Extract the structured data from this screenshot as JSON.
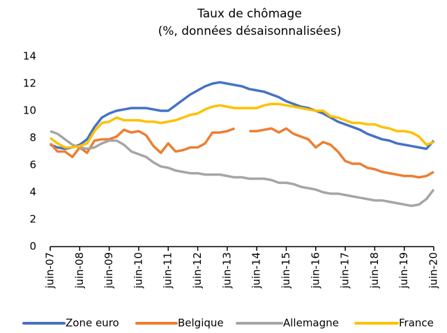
{
  "chart_data": {
    "type": "line",
    "title": [
      "Taux de chômage",
      "(%, données désaisonnalisées)"
    ],
    "categories": [
      "juin-07",
      null,
      null,
      null,
      "juin-08",
      null,
      null,
      null,
      "juin-09",
      null,
      null,
      null,
      "juin-10",
      null,
      null,
      null,
      "juin-11",
      null,
      null,
      null,
      "juin-12",
      null,
      null,
      null,
      "juin-13",
      null,
      null,
      null,
      "juin-14",
      null,
      null,
      null,
      "juin-15",
      null,
      null,
      null,
      "juin-16",
      null,
      null,
      null,
      "juin-17",
      null,
      null,
      null,
      "juin-18",
      null,
      null,
      null,
      "juin-19",
      null,
      null,
      null,
      "juin-20"
    ],
    "series": [
      {
        "name": "Zone euro",
        "color": "#4472c4",
        "values": [
          7.5,
          7.3,
          7.2,
          7.3,
          7.5,
          7.9,
          8.8,
          9.5,
          9.8,
          10.0,
          10.1,
          10.2,
          10.2,
          10.2,
          10.1,
          10.0,
          10.0,
          10.4,
          10.8,
          11.2,
          11.5,
          11.8,
          12.0,
          12.1,
          12.0,
          11.9,
          11.8,
          11.6,
          11.5,
          11.4,
          11.2,
          11.0,
          10.7,
          10.5,
          10.3,
          10.2,
          10.0,
          9.8,
          9.5,
          9.2,
          9.0,
          8.8,
          8.6,
          8.3,
          8.1,
          7.9,
          7.8,
          7.6,
          7.5,
          7.4,
          7.3,
          7.2,
          7.8
        ]
      },
      {
        "name": "Belgique",
        "color": "#ed7d31",
        "values": [
          7.6,
          7.0,
          7.0,
          6.6,
          7.3,
          6.9,
          7.8,
          7.9,
          7.9,
          8.1,
          8.6,
          8.4,
          8.5,
          8.2,
          7.4,
          6.9,
          7.6,
          7.0,
          7.1,
          7.3,
          7.3,
          7.6,
          8.4,
          8.4,
          8.5,
          8.7,
          null,
          8.5,
          8.5,
          8.6,
          8.7,
          8.4,
          8.7,
          8.3,
          8.1,
          7.9,
          7.3,
          7.7,
          7.5,
          7.0,
          6.3,
          6.1,
          6.1,
          5.8,
          5.7,
          5.5,
          5.4,
          5.3,
          5.2,
          5.2,
          5.1,
          5.2,
          5.5
        ]
      },
      {
        "name": "Allemagne",
        "color": "#a5a5a5",
        "values": [
          8.5,
          8.3,
          7.9,
          7.5,
          7.3,
          7.2,
          7.3,
          7.6,
          7.8,
          7.8,
          7.5,
          7.0,
          6.8,
          6.6,
          6.2,
          5.9,
          5.8,
          5.6,
          5.5,
          5.4,
          5.4,
          5.3,
          5.3,
          5.3,
          5.2,
          5.1,
          5.1,
          5.0,
          5.0,
          5.0,
          4.9,
          4.7,
          4.7,
          4.6,
          4.4,
          4.3,
          4.2,
          4.0,
          3.9,
          3.9,
          3.8,
          3.7,
          3.6,
          3.5,
          3.4,
          3.4,
          3.3,
          3.2,
          3.1,
          3.0,
          3.1,
          3.5,
          4.2
        ]
      },
      {
        "name": "France",
        "color": "#ffc000",
        "values": [
          8.0,
          7.6,
          7.3,
          7.3,
          7.4,
          7.6,
          8.5,
          9.1,
          9.2,
          9.5,
          9.3,
          9.3,
          9.3,
          9.2,
          9.2,
          9.1,
          9.2,
          9.3,
          9.5,
          9.7,
          9.8,
          10.1,
          10.3,
          10.4,
          10.3,
          10.2,
          10.2,
          10.2,
          10.2,
          10.4,
          10.5,
          10.5,
          10.4,
          10.3,
          10.2,
          10.1,
          10.0,
          10.0,
          9.6,
          9.5,
          9.3,
          9.1,
          9.1,
          9.0,
          9.0,
          8.8,
          8.7,
          8.5,
          8.5,
          8.4,
          8.1,
          7.5,
          7.7
        ]
      }
    ],
    "ylim": [
      0,
      14
    ],
    "yticks": [
      0,
      2,
      4,
      6,
      8,
      10,
      12,
      14
    ],
    "grid": false,
    "legend": "bottom"
  }
}
